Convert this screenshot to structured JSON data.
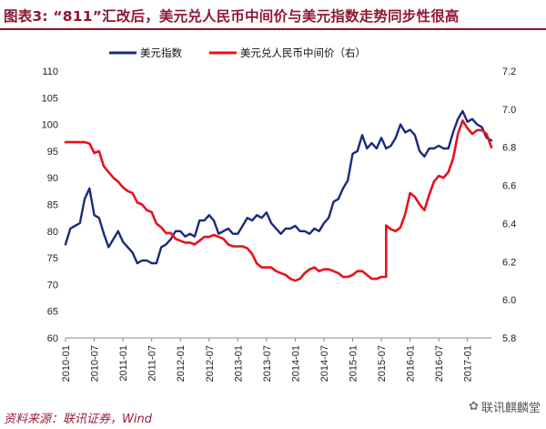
{
  "header": {
    "title": "图表3:      “811”汇改后，美元兑人民币中间价与美元指数走势同步性很高"
  },
  "footer": {
    "source": "资料来源：联讯证券，Wind",
    "watermark": "联讯麒麟堂",
    "watermark_icon": "wechat-icon"
  },
  "colors": {
    "dxy": "#1a2a7a",
    "cny": "#e8101c",
    "accent": "#8f1733"
  },
  "chart_data": {
    "type": "line",
    "title": "",
    "x_tick_labels": [
      "2010-01",
      "2010-07",
      "2011-01",
      "2011-07",
      "2012-01",
      "2012-07",
      "2013-01",
      "2013-07",
      "2014-01",
      "2014-07",
      "2015-01",
      "2015-07",
      "2016-01",
      "2016-07",
      "2017-01"
    ],
    "x_range": [
      "2010-01",
      "2017-06"
    ],
    "y_left": {
      "range": [
        60,
        110
      ],
      "ticks": [
        60,
        65,
        70,
        75,
        80,
        85,
        90,
        95,
        100,
        105,
        110
      ]
    },
    "y_right": {
      "range": [
        5.8,
        7.2
      ],
      "ticks": [
        "5.8",
        "6.0",
        "6.2",
        "6.4",
        "6.6",
        "6.8",
        "7.0",
        "7.2"
      ]
    },
    "grid": false,
    "legend_position": "top-center",
    "series": [
      {
        "name": "美元指数",
        "axis": "left",
        "color": "#1a2a7a",
        "points": [
          [
            "2010-01",
            77.5
          ],
          [
            "2010-02",
            80.5
          ],
          [
            "2010-03",
            81.0
          ],
          [
            "2010-04",
            81.5
          ],
          [
            "2010-05",
            86.0
          ],
          [
            "2010-06",
            88.0
          ],
          [
            "2010-07",
            83.0
          ],
          [
            "2010-08",
            82.5
          ],
          [
            "2010-09",
            79.5
          ],
          [
            "2010-10",
            77.0
          ],
          [
            "2010-11",
            78.5
          ],
          [
            "2010-12",
            80.0
          ],
          [
            "2011-01",
            78.0
          ],
          [
            "2011-02",
            77.0
          ],
          [
            "2011-03",
            76.0
          ],
          [
            "2011-04",
            74.0
          ],
          [
            "2011-05",
            74.5
          ],
          [
            "2011-06",
            74.5
          ],
          [
            "2011-07",
            74.0
          ],
          [
            "2011-08",
            74.0
          ],
          [
            "2011-09",
            77.0
          ],
          [
            "2011-10",
            77.5
          ],
          [
            "2011-11",
            78.5
          ],
          [
            "2011-12",
            80.0
          ],
          [
            "2012-01",
            80.0
          ],
          [
            "2012-02",
            79.0
          ],
          [
            "2012-03",
            79.5
          ],
          [
            "2012-04",
            79.0
          ],
          [
            "2012-05",
            82.0
          ],
          [
            "2012-06",
            82.0
          ],
          [
            "2012-07",
            83.0
          ],
          [
            "2012-08",
            82.0
          ],
          [
            "2012-09",
            79.5
          ],
          [
            "2012-10",
            80.0
          ],
          [
            "2012-11",
            80.5
          ],
          [
            "2012-12",
            79.5
          ],
          [
            "2013-01",
            79.5
          ],
          [
            "2013-02",
            81.0
          ],
          [
            "2013-03",
            82.5
          ],
          [
            "2013-04",
            82.0
          ],
          [
            "2013-05",
            83.0
          ],
          [
            "2013-06",
            82.5
          ],
          [
            "2013-07",
            83.5
          ],
          [
            "2013-08",
            81.5
          ],
          [
            "2013-09",
            80.5
          ],
          [
            "2013-10",
            79.5
          ],
          [
            "2013-11",
            80.5
          ],
          [
            "2013-12",
            80.5
          ],
          [
            "2014-01",
            81.0
          ],
          [
            "2014-02",
            80.0
          ],
          [
            "2014-03",
            80.0
          ],
          [
            "2014-04",
            79.5
          ],
          [
            "2014-05",
            80.5
          ],
          [
            "2014-06",
            80.0
          ],
          [
            "2014-07",
            81.5
          ],
          [
            "2014-08",
            82.5
          ],
          [
            "2014-09",
            85.5
          ],
          [
            "2014-10",
            86.0
          ],
          [
            "2014-11",
            88.0
          ],
          [
            "2014-12",
            89.5
          ],
          [
            "2015-01",
            94.5
          ],
          [
            "2015-02",
            95.0
          ],
          [
            "2015-03",
            98.0
          ],
          [
            "2015-04",
            95.5
          ],
          [
            "2015-05",
            96.5
          ],
          [
            "2015-06",
            95.5
          ],
          [
            "2015-07",
            97.5
          ],
          [
            "2015-08",
            95.5
          ],
          [
            "2015-09",
            96.0
          ],
          [
            "2015-10",
            97.5
          ],
          [
            "2015-11",
            100.0
          ],
          [
            "2015-12",
            98.5
          ],
          [
            "2016-01",
            99.0
          ],
          [
            "2016-02",
            98.0
          ],
          [
            "2016-03",
            95.0
          ],
          [
            "2016-04",
            94.0
          ],
          [
            "2016-05",
            95.5
          ],
          [
            "2016-06",
            95.5
          ],
          [
            "2016-07",
            96.0
          ],
          [
            "2016-08",
            95.5
          ],
          [
            "2016-09",
            95.5
          ],
          [
            "2016-10",
            98.5
          ],
          [
            "2016-11",
            101.0
          ],
          [
            "2016-12",
            102.5
          ],
          [
            "2017-01",
            100.5
          ],
          [
            "2017-02",
            101.0
          ],
          [
            "2017-03",
            100.0
          ],
          [
            "2017-04",
            99.5
          ],
          [
            "2017-05",
            97.5
          ],
          [
            "2017-06",
            97.0
          ]
        ]
      },
      {
        "name": "美元兑人民币中间价（右）",
        "axis": "right",
        "color": "#e8101c",
        "points": [
          [
            "2010-01",
            6.827
          ],
          [
            "2010-03",
            6.827
          ],
          [
            "2010-05",
            6.827
          ],
          [
            "2010-06",
            6.82
          ],
          [
            "2010-07",
            6.77
          ],
          [
            "2010-08",
            6.78
          ],
          [
            "2010-09",
            6.7
          ],
          [
            "2010-10",
            6.67
          ],
          [
            "2010-11",
            6.64
          ],
          [
            "2010-12",
            6.62
          ],
          [
            "2011-01",
            6.59
          ],
          [
            "2011-02",
            6.57
          ],
          [
            "2011-03",
            6.56
          ],
          [
            "2011-04",
            6.51
          ],
          [
            "2011-05",
            6.5
          ],
          [
            "2011-06",
            6.47
          ],
          [
            "2011-07",
            6.46
          ],
          [
            "2011-08",
            6.4
          ],
          [
            "2011-09",
            6.38
          ],
          [
            "2011-10",
            6.35
          ],
          [
            "2011-11",
            6.35
          ],
          [
            "2011-12",
            6.32
          ],
          [
            "2012-01",
            6.31
          ],
          [
            "2012-02",
            6.3
          ],
          [
            "2012-03",
            6.3
          ],
          [
            "2012-04",
            6.29
          ],
          [
            "2012-05",
            6.31
          ],
          [
            "2012-06",
            6.33
          ],
          [
            "2012-07",
            6.33
          ],
          [
            "2012-08",
            6.34
          ],
          [
            "2012-09",
            6.33
          ],
          [
            "2012-10",
            6.32
          ],
          [
            "2012-11",
            6.29
          ],
          [
            "2012-12",
            6.28
          ],
          [
            "2013-01",
            6.28
          ],
          [
            "2013-02",
            6.28
          ],
          [
            "2013-03",
            6.27
          ],
          [
            "2013-04",
            6.24
          ],
          [
            "2013-05",
            6.19
          ],
          [
            "2013-06",
            6.17
          ],
          [
            "2013-07",
            6.17
          ],
          [
            "2013-08",
            6.17
          ],
          [
            "2013-09",
            6.15
          ],
          [
            "2013-10",
            6.14
          ],
          [
            "2013-11",
            6.13
          ],
          [
            "2013-12",
            6.11
          ],
          [
            "2014-01",
            6.1
          ],
          [
            "2014-02",
            6.11
          ],
          [
            "2014-03",
            6.14
          ],
          [
            "2014-04",
            6.16
          ],
          [
            "2014-05",
            6.17
          ],
          [
            "2014-06",
            6.15
          ],
          [
            "2014-07",
            6.16
          ],
          [
            "2014-08",
            6.16
          ],
          [
            "2014-09",
            6.15
          ],
          [
            "2014-10",
            6.14
          ],
          [
            "2014-11",
            6.12
          ],
          [
            "2014-12",
            6.12
          ],
          [
            "2015-01",
            6.13
          ],
          [
            "2015-02",
            6.15
          ],
          [
            "2015-03",
            6.15
          ],
          [
            "2015-04",
            6.13
          ],
          [
            "2015-05",
            6.11
          ],
          [
            "2015-06",
            6.11
          ],
          [
            "2015-07",
            6.12
          ],
          [
            "2015-08",
            6.12
          ],
          [
            "2015-08",
            6.39
          ],
          [
            "2015-09",
            6.37
          ],
          [
            "2015-10",
            6.36
          ],
          [
            "2015-11",
            6.38
          ],
          [
            "2015-12",
            6.45
          ],
          [
            "2016-01",
            6.56
          ],
          [
            "2016-02",
            6.54
          ],
          [
            "2016-03",
            6.5
          ],
          [
            "2016-04",
            6.47
          ],
          [
            "2016-05",
            6.55
          ],
          [
            "2016-06",
            6.62
          ],
          [
            "2016-07",
            6.65
          ],
          [
            "2016-08",
            6.64
          ],
          [
            "2016-09",
            6.67
          ],
          [
            "2016-10",
            6.74
          ],
          [
            "2016-11",
            6.87
          ],
          [
            "2016-12",
            6.94
          ],
          [
            "2017-01",
            6.9
          ],
          [
            "2017-02",
            6.87
          ],
          [
            "2017-03",
            6.89
          ],
          [
            "2017-04",
            6.89
          ],
          [
            "2017-05",
            6.87
          ],
          [
            "2017-06",
            6.8
          ]
        ]
      }
    ]
  }
}
